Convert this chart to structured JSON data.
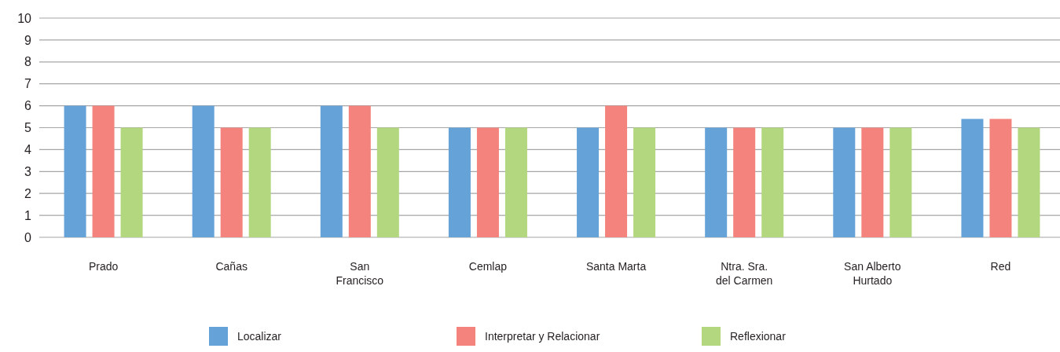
{
  "chart_data": {
    "type": "bar",
    "categories": [
      "Prado",
      "Cañas",
      "San Francisco",
      "Cemlap",
      "Santa Marta",
      "Ntra. Sra. del Carmen",
      "San Alberto Hurtado",
      "Red"
    ],
    "series": [
      {
        "name": "Localizar",
        "color": "#64a2d8",
        "values": [
          6,
          6,
          6,
          5,
          5,
          5,
          5,
          5.4
        ]
      },
      {
        "name": "Interpretar y Relacionar",
        "color": "#f3837c",
        "values": [
          6,
          5,
          6,
          5,
          6,
          5,
          5,
          5.4
        ]
      },
      {
        "name": "Reflexionar",
        "color": "#b3d77f",
        "values": [
          5,
          5,
          5,
          5,
          5,
          5,
          5,
          5
        ]
      }
    ],
    "ylim": [
      0,
      10
    ],
    "yticks": [
      0,
      1,
      2,
      3,
      4,
      5,
      6,
      7,
      8,
      9,
      10
    ],
    "grid": "y",
    "legend": "bottom"
  }
}
